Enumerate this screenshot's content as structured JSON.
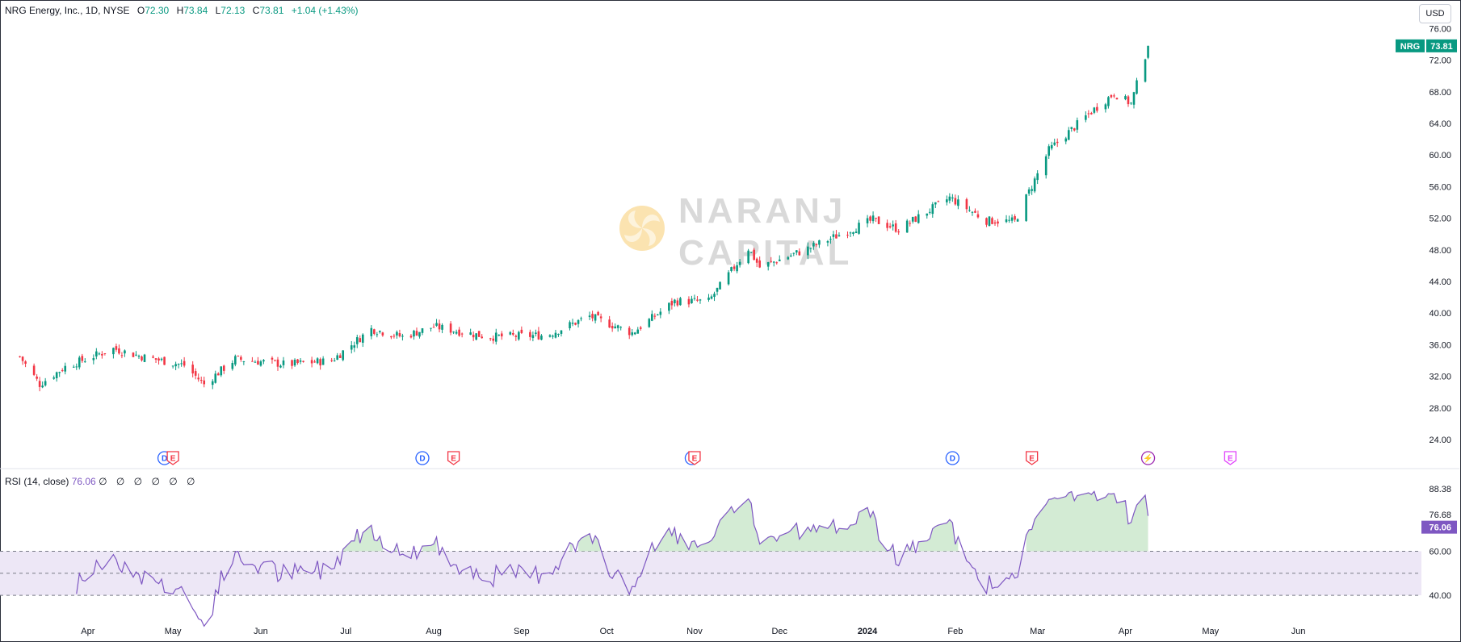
{
  "header": {
    "title": "NRG Energy, Inc., 1D, NYSE",
    "open_label": "O",
    "open": "72.30",
    "high_label": "H",
    "high": "73.84",
    "low_label": "L",
    "low": "72.13",
    "close_label": "C",
    "close": "73.81",
    "change": "+1.04 (+1.43%)"
  },
  "currency": "USD",
  "watermark": {
    "line1": "NARANJ",
    "line2": "CAPITAL"
  },
  "price_tag": {
    "symbol": "NRG",
    "value": "73.81"
  },
  "rsi": {
    "legend": "RSI (14, close)",
    "value": "76.06",
    "placeholders": "∅ ∅ ∅ ∅ ∅ ∅",
    "tags": [
      "88.38",
      "76.68",
      "76.06"
    ]
  },
  "events": [
    {
      "type": "D",
      "label": "D",
      "date": "2023-04-28"
    },
    {
      "type": "E",
      "label": "E",
      "date": "2023-05-01"
    },
    {
      "type": "D",
      "label": "D",
      "date": "2023-07-28"
    },
    {
      "type": "E",
      "label": "E",
      "date": "2023-08-08"
    },
    {
      "type": "D",
      "label": "D",
      "date": "2023-10-31"
    },
    {
      "type": "E",
      "label": "E",
      "date": "2023-11-01"
    },
    {
      "type": "D",
      "label": "D",
      "date": "2024-01-31"
    },
    {
      "type": "E",
      "label": "E",
      "date": "2024-02-28"
    },
    {
      "type": "S",
      "label": "⚡",
      "date": "2024-04-09"
    },
    {
      "type": "E2",
      "label": "E",
      "date": "2024-05-08"
    }
  ],
  "colors": {
    "up": "#089981",
    "down": "#f23645",
    "rsi_line": "#7e57c2",
    "rsi_band": "#ede7f6",
    "rsi_ob_fill": "#c8e6c9",
    "grid_text": "#131722",
    "dividend": "#2962ff",
    "earnings": "#f23645",
    "split": "#9c27b0",
    "future_earnings": "#e040fb"
  },
  "chart_data": [
    {
      "type": "candlestick",
      "title": "NRG Energy, Inc., 1D, NYSE",
      "y_ticks": [
        "76.00",
        "72.00",
        "68.00",
        "64.00",
        "60.00",
        "56.00",
        "52.00",
        "48.00",
        "44.00",
        "40.00",
        "36.00",
        "32.00",
        "28.00",
        "24.00"
      ],
      "x_ticks": [
        "Apr",
        "May",
        "Jun",
        "Jul",
        "Aug",
        "Sep",
        "Oct",
        "Nov",
        "Dec",
        "2024",
        "Feb",
        "Mar",
        "Apr",
        "May",
        "Jun"
      ],
      "ylim": [
        24,
        78
      ],
      "close_anchors": [
        {
          "date": "2023-03-08",
          "close": 34.5
        },
        {
          "date": "2023-03-15",
          "close": 31.0
        },
        {
          "date": "2023-03-24",
          "close": 33.2
        },
        {
          "date": "2023-04-10",
          "close": 35.5
        },
        {
          "date": "2023-04-20",
          "close": 34.5
        },
        {
          "date": "2023-05-05",
          "close": 33.4
        },
        {
          "date": "2023-05-12",
          "close": 31.0
        },
        {
          "date": "2023-05-23",
          "close": 34.2
        },
        {
          "date": "2023-06-10",
          "close": 33.5
        },
        {
          "date": "2023-06-26",
          "close": 34.0
        },
        {
          "date": "2023-07-10",
          "close": 38.0
        },
        {
          "date": "2023-07-21",
          "close": 37.0
        },
        {
          "date": "2023-08-01",
          "close": 38.3
        },
        {
          "date": "2023-08-20",
          "close": 37.0
        },
        {
          "date": "2023-09-10",
          "close": 37.2
        },
        {
          "date": "2023-09-25",
          "close": 39.6
        },
        {
          "date": "2023-10-10",
          "close": 37.5
        },
        {
          "date": "2023-10-25",
          "close": 41.5
        },
        {
          "date": "2023-11-06",
          "close": 41.5
        },
        {
          "date": "2023-11-20",
          "close": 48.2
        },
        {
          "date": "2023-11-24",
          "close": 45.8
        },
        {
          "date": "2023-12-10",
          "close": 48.0
        },
        {
          "date": "2024-01-03",
          "close": 51.8
        },
        {
          "date": "2024-01-12",
          "close": 50.6
        },
        {
          "date": "2024-01-30",
          "close": 54.6
        },
        {
          "date": "2024-02-12",
          "close": 51.7
        },
        {
          "date": "2024-02-22",
          "close": 51.6
        },
        {
          "date": "2024-03-05",
          "close": 60.6
        },
        {
          "date": "2024-03-20",
          "close": 65.5
        },
        {
          "date": "2024-03-28",
          "close": 67.8
        },
        {
          "date": "2024-04-03",
          "close": 66.5
        },
        {
          "date": "2024-04-09",
          "close": 73.81
        }
      ]
    },
    {
      "type": "line",
      "title": "RSI (14, close)",
      "y_ticks": [
        "60.00",
        "40.00"
      ],
      "ylim": [
        26,
        92
      ],
      "overbought": 60,
      "midline": 50,
      "oversold": 40,
      "last_value": 76.06
    }
  ]
}
